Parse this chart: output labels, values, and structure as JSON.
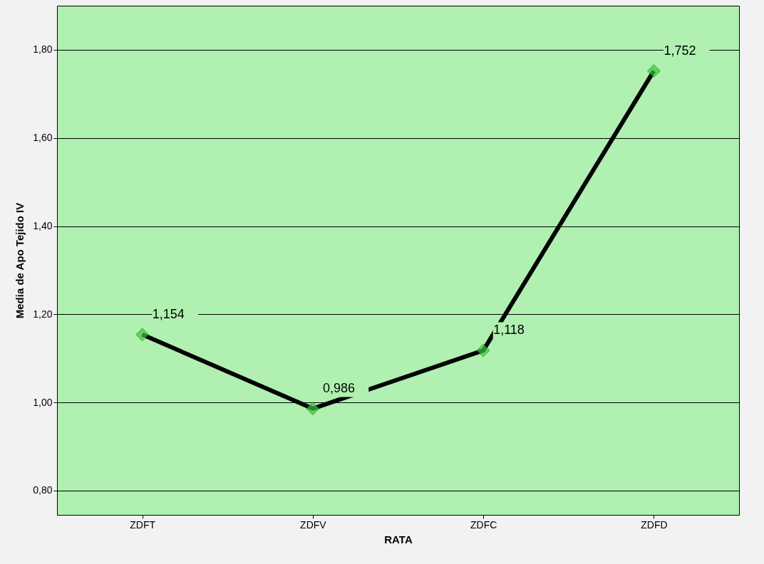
{
  "chart_data": {
    "type": "line",
    "xlabel": "RATA",
    "ylabel": "Media de Apo Tejido IV",
    "categories": [
      "ZDFT",
      "ZDFV",
      "ZDFC",
      "ZDFD"
    ],
    "series": [
      {
        "color": "#000000",
        "values": [
          1.154,
          0.986,
          1.118,
          1.752
        ],
        "value_labels": [
          "1,154",
          "0,986",
          "1,118",
          "1,752"
        ]
      }
    ],
    "ylim": [
      0.745,
      1.9
    ],
    "yticks": [
      {
        "value": 0.8,
        "label": "0,80"
      },
      {
        "value": 1.0,
        "label": "1,00"
      },
      {
        "value": 1.2,
        "label": "1,20"
      },
      {
        "value": 1.4,
        "label": "1,40"
      },
      {
        "value": 1.6,
        "label": "1,60"
      },
      {
        "value": 1.8,
        "label": "1,80"
      }
    ],
    "grid": "y",
    "marker": "diamond",
    "line_style": "solid"
  }
}
